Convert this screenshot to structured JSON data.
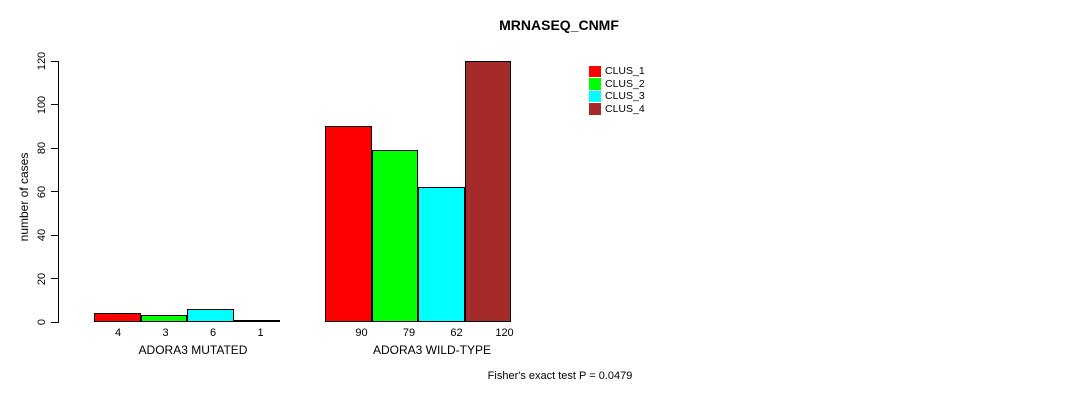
{
  "chart_data": {
    "type": "bar",
    "title": "MRNASEQ_CNMF",
    "ylabel": "number of cases",
    "xlabel": "",
    "categories": [
      "ADORA3 MUTATED",
      "ADORA3 WILD-TYPE"
    ],
    "series": [
      {
        "name": "CLUS_1",
        "color": "#FF0000",
        "values": [
          4,
          90
        ]
      },
      {
        "name": "CLUS_2",
        "color": "#00FF00",
        "values": [
          3,
          79
        ]
      },
      {
        "name": "CLUS_3",
        "color": "#00FFFF",
        "values": [
          6,
          62
        ]
      },
      {
        "name": "CLUS_4",
        "color": "#A52A2A",
        "values": [
          1,
          120
        ]
      }
    ],
    "bar_value_labels": [
      [
        "4",
        "3",
        "6",
        "1"
      ],
      [
        "90",
        "79",
        "62",
        "120"
      ]
    ],
    "yticks": [
      "0",
      "20",
      "40",
      "60",
      "80",
      "100",
      "120"
    ],
    "ylim": [
      0,
      120
    ],
    "grid": false,
    "legend_position": "top-right",
    "bar_border_color": "#000000",
    "annotation": "Fisher's exact test P = 0.0479"
  }
}
